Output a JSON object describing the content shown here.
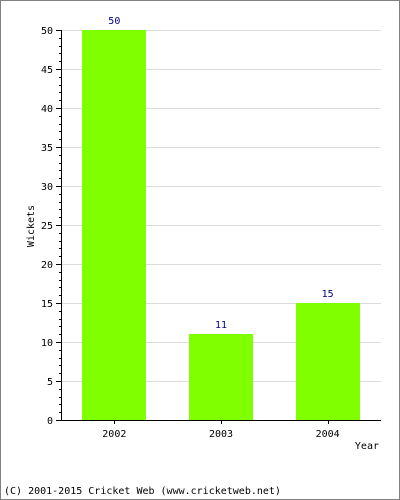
{
  "chart_data": {
    "type": "bar",
    "title": "",
    "xlabel": "Year",
    "ylabel": "Wickets",
    "categories": [
      "2002",
      "2003",
      "2004"
    ],
    "values": [
      50,
      11,
      15
    ],
    "data_labels": [
      "50",
      "11",
      "15"
    ],
    "ylim": [
      0,
      50
    ],
    "yticks": [
      0,
      5,
      10,
      15,
      20,
      25,
      30,
      35,
      40,
      45,
      50
    ],
    "grid": true,
    "bar_color": "#80ff00"
  },
  "footer": {
    "credit": "(C) 2001-2015 Cricket Web (www.cricketweb.net)"
  }
}
